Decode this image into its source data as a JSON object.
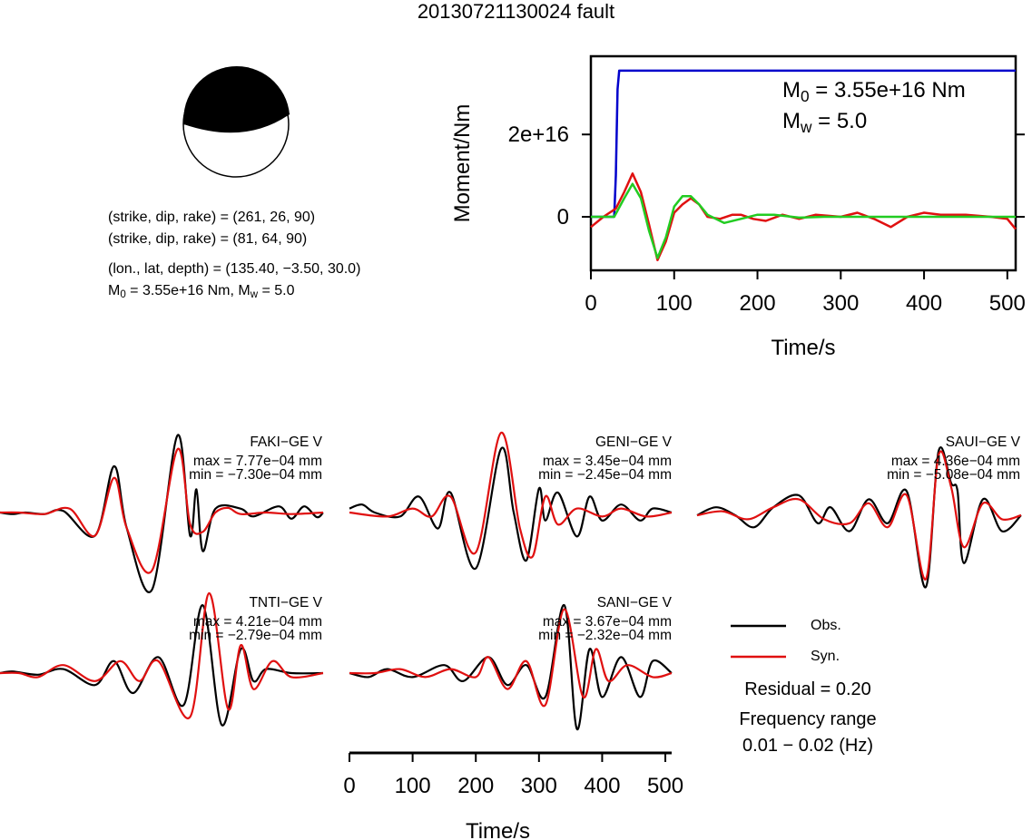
{
  "page": {
    "title": "20130721130024 fault",
    "mechanism": {
      "line1": "(strike, dip, rake) = (261, 26, 90)",
      "line2": "(strike, dip, rake) = (81, 64, 90)",
      "line3": "(lon., lat, depth) = (135.40, −3.50, 30.0)",
      "m0_label": "M",
      "m0_sub": "0",
      "m0_rest": " = 3.55e+16 Nm, M",
      "mw_sub": "w",
      "mw_rest": " = 5.0"
    },
    "moment_box": {
      "m0_label": "M",
      "m0_sub": "0",
      "m0_value": " = 3.55e+16 Nm",
      "mw_label": "M",
      "mw_sub": "w",
      "mw_value": " = 5.0"
    },
    "legend": {
      "obs": "Obs.",
      "syn": "Syn.",
      "residual": "Residual = 0.20",
      "freq_title": "Frequency range",
      "freq_value": "0.01 − 0.02 (Hz)"
    },
    "colors": {
      "obs": "#000000",
      "syn": "#e01010",
      "stf": "#0000cc",
      "green": "#22cc22"
    }
  },
  "chart_data": [
    {
      "type": "line",
      "name": "moment-rate",
      "title": "",
      "xlabel": "Time/s",
      "ylabel": "Moment/Nm",
      "xlim": [
        0,
        510
      ],
      "ylim": [
        -1.3e+16,
        3.9e+16
      ],
      "xticks": [
        0,
        100,
        200,
        300,
        400,
        500
      ],
      "yticks": [
        {
          "value": 0,
          "label": "0"
        },
        {
          "value": 2e+16,
          "label": "2e+16"
        }
      ],
      "series": [
        {
          "color": "#0000cc",
          "x": [
            0,
            28,
            30,
            32,
            34,
            510
          ],
          "y": [
            0,
            0,
            1e+16,
            3.1e+16,
            3.55e+16,
            3.55e+16
          ]
        },
        {
          "color": "#e01010",
          "x": [
            0,
            15,
            30,
            40,
            50,
            60,
            70,
            80,
            90,
            100,
            110,
            120,
            130,
            140,
            155,
            170,
            180,
            195,
            210,
            230,
            250,
            270,
            300,
            320,
            340,
            360,
            380,
            400,
            420,
            450,
            480,
            500,
            510
          ],
          "y": [
            -2500000000000000.0,
            0,
            2000000000000000.0,
            6000000000000000.0,
            1.05e+16,
            6000000000000000.0,
            -2000000000000000.0,
            -1.05e+16,
            -6000000000000000.0,
            1000000000000000.0,
            3000000000000000.0,
            4500000000000000.0,
            3000000000000000.0,
            0.0,
            -500000000000000.0,
            500000000000000.0,
            500000000000000.0,
            -500000000000000.0,
            -1000000000000000.0,
            500000000000000.0,
            -500000000000000.0,
            500000000000000.0,
            0.0,
            1000000000000000.0,
            -500000000000000.0,
            -2500000000000000.0,
            0.0,
            1000000000000000.0,
            500000000000000.0,
            500000000000000.0,
            0.0,
            -500000000000000.0,
            -3000000000000000.0
          ]
        },
        {
          "color": "#22cc22",
          "x": [
            0,
            28,
            40,
            50,
            60,
            70,
            80,
            90,
            100,
            110,
            120,
            130,
            140,
            160,
            180,
            200,
            220,
            250,
            280,
            320,
            400,
            510
          ],
          "y": [
            0,
            0,
            4500000000000000.0,
            8000000000000000.0,
            4500000000000000.0,
            -3500000000000000.0,
            -1e+16,
            -5000000000000000.0,
            2500000000000000.0,
            5000000000000000.0,
            5000000000000000.0,
            3000000000000000.0,
            500000000000000.0,
            -1500000000000000.0,
            -500000000000000.0,
            500000000000000.0,
            500000000000000.0,
            -200000000000000.0,
            0.0,
            0.0,
            0.0,
            0.0
          ]
        }
      ]
    },
    {
      "type": "line",
      "name": "waveform-fits",
      "xlabel": "Time/s",
      "xlim": [
        0,
        510
      ],
      "xticks": [
        0,
        100,
        200,
        300,
        400,
        500
      ],
      "panels": [
        {
          "station": "FAKI−GE V",
          "max": "max = 7.77e−04 mm",
          "min": "min = −7.30e−04 mm",
          "obs": [
            [
              0,
              0
            ],
            [
              20,
              -0.02
            ],
            [
              40,
              0.0
            ],
            [
              70,
              -0.02
            ],
            [
              100,
              0.02
            ],
            [
              150,
              -0.3
            ],
            [
              180,
              0.6
            ],
            [
              200,
              -0.2
            ],
            [
              240,
              -1.0
            ],
            [
              280,
              1.0
            ],
            [
              300,
              -0.3
            ],
            [
              310,
              0.3
            ],
            [
              320,
              -0.5
            ],
            [
              340,
              0.05
            ],
            [
              380,
              0.05
            ],
            [
              400,
              -0.05
            ],
            [
              440,
              0.08
            ],
            [
              460,
              -0.08
            ],
            [
              480,
              0.08
            ],
            [
              500,
              -0.06
            ],
            [
              510,
              0.0
            ]
          ],
          "syn": [
            [
              0,
              0
            ],
            [
              30,
              0.0
            ],
            [
              70,
              -0.02
            ],
            [
              110,
              0.05
            ],
            [
              150,
              -0.3
            ],
            [
              180,
              0.45
            ],
            [
              200,
              -0.2
            ],
            [
              240,
              -0.75
            ],
            [
              280,
              0.82
            ],
            [
              300,
              -0.15
            ],
            [
              320,
              -0.25
            ],
            [
              340,
              0.0
            ],
            [
              360,
              0.06
            ],
            [
              380,
              -0.02
            ],
            [
              420,
              0.0
            ],
            [
              460,
              -0.02
            ],
            [
              510,
              0.0
            ]
          ]
        },
        {
          "station": "GENI−GE V",
          "max": "max = 3.45e−04 mm",
          "min": "min = −2.45e−04 mm",
          "obs": [
            [
              0,
              0.05
            ],
            [
              20,
              0.1
            ],
            [
              40,
              0.0
            ],
            [
              80,
              -0.05
            ],
            [
              110,
              0.2
            ],
            [
              140,
              -0.2
            ],
            [
              160,
              0.25
            ],
            [
              200,
              -0.7
            ],
            [
              240,
              0.8
            ],
            [
              260,
              0.0
            ],
            [
              280,
              -0.6
            ],
            [
              300,
              0.3
            ],
            [
              310,
              -0.1
            ],
            [
              330,
              0.25
            ],
            [
              360,
              -0.3
            ],
            [
              380,
              0.2
            ],
            [
              400,
              -0.1
            ],
            [
              430,
              0.1
            ],
            [
              460,
              -0.1
            ],
            [
              480,
              0.05
            ],
            [
              510,
              0.0
            ]
          ],
          "syn": [
            [
              0,
              0
            ],
            [
              60,
              -0.05
            ],
            [
              100,
              0.05
            ],
            [
              130,
              -0.05
            ],
            [
              160,
              0.2
            ],
            [
              200,
              -0.5
            ],
            [
              240,
              1.0
            ],
            [
              270,
              -0.2
            ],
            [
              290,
              -0.55
            ],
            [
              310,
              0.2
            ],
            [
              330,
              -0.15
            ],
            [
              360,
              0.05
            ],
            [
              400,
              -0.05
            ],
            [
              430,
              0.05
            ],
            [
              470,
              -0.05
            ],
            [
              510,
              0.0
            ]
          ]
        },
        {
          "station": "SAUI−GE V",
          "max": "max = 4.36e−04 mm",
          "min": "min = −5.08e−04 mm",
          "obs": [
            [
              0,
              0
            ],
            [
              30,
              0.1
            ],
            [
              60,
              0.0
            ],
            [
              90,
              -0.15
            ],
            [
              120,
              0.1
            ],
            [
              160,
              0.25
            ],
            [
              190,
              -0.1
            ],
            [
              210,
              0.1
            ],
            [
              240,
              -0.2
            ],
            [
              270,
              0.2
            ],
            [
              300,
              -0.1
            ],
            [
              330,
              0.3
            ],
            [
              360,
              -0.9
            ],
            [
              380,
              0.8
            ],
            [
              400,
              0.4
            ],
            [
              410,
              0.3
            ],
            [
              420,
              -0.6
            ],
            [
              450,
              0.2
            ],
            [
              480,
              -0.2
            ],
            [
              510,
              0.0
            ]
          ],
          "syn": [
            [
              0,
              0
            ],
            [
              40,
              0.05
            ],
            [
              80,
              -0.05
            ],
            [
              120,
              0.1
            ],
            [
              160,
              0.2
            ],
            [
              200,
              -0.05
            ],
            [
              240,
              -0.1
            ],
            [
              270,
              0.15
            ],
            [
              300,
              -0.15
            ],
            [
              330,
              0.25
            ],
            [
              360,
              -0.8
            ],
            [
              380,
              0.75
            ],
            [
              400,
              0.35
            ],
            [
              420,
              -0.4
            ],
            [
              450,
              0.15
            ],
            [
              480,
              -0.05
            ],
            [
              510,
              0.0
            ]
          ]
        },
        {
          "station": "TNTI−GE V",
          "max": "max = 4.21e−04 mm",
          "min": "min = −2.79e−04 mm",
          "obs": [
            [
              0,
              0
            ],
            [
              20,
              0.02
            ],
            [
              60,
              -0.02
            ],
            [
              100,
              0.05
            ],
            [
              150,
              -0.15
            ],
            [
              180,
              0.15
            ],
            [
              210,
              -0.25
            ],
            [
              250,
              0.2
            ],
            [
              290,
              -0.4
            ],
            [
              320,
              0.85
            ],
            [
              350,
              -0.65
            ],
            [
              380,
              0.3
            ],
            [
              400,
              -0.1
            ],
            [
              420,
              0.05
            ],
            [
              460,
              0.0
            ],
            [
              510,
              0.0
            ]
          ],
          "syn": [
            [
              0,
              0
            ],
            [
              30,
              0.0
            ],
            [
              60,
              -0.05
            ],
            [
              100,
              0.1
            ],
            [
              150,
              -0.1
            ],
            [
              190,
              0.15
            ],
            [
              220,
              -0.1
            ],
            [
              250,
              0.15
            ],
            [
              300,
              -0.55
            ],
            [
              330,
              1.0
            ],
            [
              360,
              -0.45
            ],
            [
              380,
              0.35
            ],
            [
              400,
              -0.2
            ],
            [
              430,
              0.15
            ],
            [
              460,
              -0.05
            ],
            [
              510,
              0.0
            ]
          ]
        },
        {
          "station": "SANI−GE V",
          "max": "max = 3.67e−04 mm",
          "min": "min = −2.32e−04 mm",
          "obs": [
            [
              0,
              0
            ],
            [
              30,
              -0.05
            ],
            [
              60,
              0.05
            ],
            [
              100,
              -0.05
            ],
            [
              150,
              0.1
            ],
            [
              180,
              -0.1
            ],
            [
              220,
              0.2
            ],
            [
              250,
              -0.15
            ],
            [
              280,
              0.1
            ],
            [
              310,
              -0.3
            ],
            [
              340,
              0.85
            ],
            [
              360,
              -0.7
            ],
            [
              380,
              0.3
            ],
            [
              400,
              -0.3
            ],
            [
              430,
              0.2
            ],
            [
              460,
              -0.3
            ],
            [
              480,
              0.15
            ],
            [
              510,
              0.0
            ]
          ],
          "syn": [
            [
              0,
              0
            ],
            [
              40,
              0.0
            ],
            [
              80,
              0.05
            ],
            [
              120,
              -0.05
            ],
            [
              160,
              0.05
            ],
            [
              200,
              -0.05
            ],
            [
              220,
              0.2
            ],
            [
              250,
              -0.2
            ],
            [
              280,
              0.15
            ],
            [
              310,
              -0.4
            ],
            [
              340,
              0.8
            ],
            [
              370,
              -0.3
            ],
            [
              390,
              0.3
            ],
            [
              410,
              -0.1
            ],
            [
              440,
              0.1
            ],
            [
              480,
              -0.05
            ],
            [
              510,
              0.0
            ]
          ]
        }
      ]
    }
  ]
}
